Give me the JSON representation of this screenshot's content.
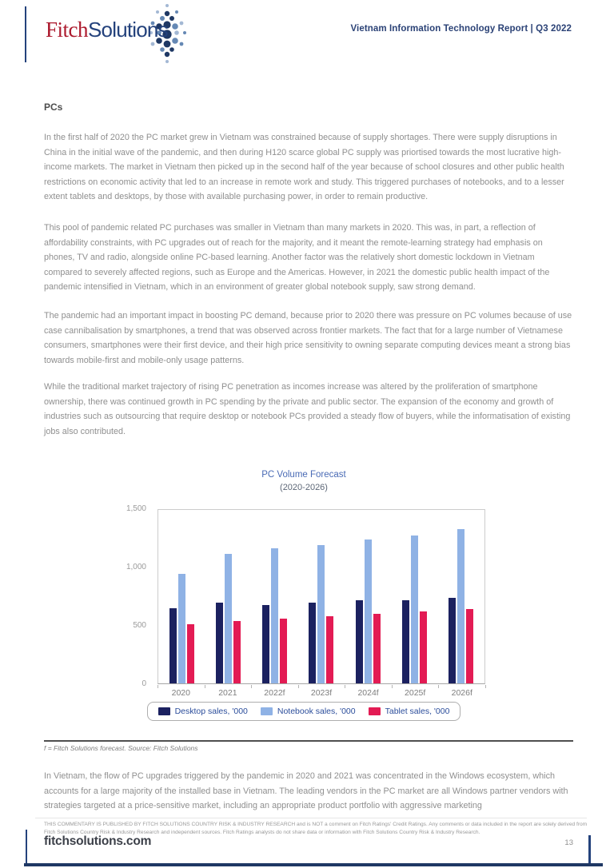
{
  "header": {
    "logo_fitch": "Fitch",
    "logo_solutions": "Solutions",
    "report_title": "Vietnam Information Technology Report | Q3 2022"
  },
  "article": {
    "heading": "PCs",
    "paragraphs": [
      "In the first half of 2020 the PC market grew in Vietnam was constrained because of supply shortages. There were supply disruptions in China in the initial wave of the pandemic, and then during H120 scarce global PC supply was priortised towards the most lucrative high-income markets. The market in Vietnam then picked up in the second half of the year because of school closures and other public health restrictions on economic activity that led to an increase in remote work and study. This triggered purchases of notebooks, and to a lesser extent tablets and desktops, by those with available purchasing power, in order to remain productive.",
      "This pool of pandemic related PC purchases was smaller in Vietnam than many markets in 2020. This was, in part, a reflection of affordability constraints, with PC upgrades out of reach for the majority, and it meant the remote-learning strategy had emphasis on phones, TV and radio, alongside online PC-based learning. Another factor was the relatively short domestic lockdown in Vietnam compared to severely affected regions, such as Europe and the Americas. However, in 2021 the domestic public health impact of the pandemic intensified in Vietnam, which in an environment of greater global notebook supply, saw strong demand.",
      "The pandemic had an important impact in boosting PC demand, because prior to 2020 there was pressure on PC volumes because of use case cannibalisation by smartphones, a trend that was observed across frontier markets. The fact that for a large number of Vietnamese consumers, smartphones were their first device, and their high price sensitivity to owning separate computing devices meant a strong bias towards mobile-first and mobile-only usage patterns.",
      "While the traditional market trajectory of rising PC penetration as incomes increase was altered by the proliferation of smartphone ownership, there was continued growth in PC spending by the private and public sector. The expansion of the economy and growth of industries such as outsourcing that require desktop or notebook PCs provided a steady flow of buyers, while the informatisation of existing jobs also contributed."
    ],
    "paragraph_after_chart": "In Vietnam, the flow of PC upgrades triggered by the pandemic in 2020 and 2021 was concentrated in the Windows ecosystem, which accounts for a large majority of the installed base in Vietnam. The leading vendors in the PC market are all Windows partner vendors with strategies targeted at a price-sensitive market, including an appropriate product portfolio with aggressive marketing"
  },
  "chart_data": {
    "type": "bar",
    "title": "PC Volume Forecast",
    "subtitle": "(2020-2026)",
    "categories": [
      "2020",
      "2021",
      "2022f",
      "2023f",
      "2024f",
      "2025f",
      "2026f"
    ],
    "series": [
      {
        "name": "Desktop sales, '000",
        "color": "#1b2160",
        "values": [
          645,
          690,
          670,
          690,
          710,
          715,
          730
        ]
      },
      {
        "name": "Notebook sales, '000",
        "color": "#8fb2e5",
        "values": [
          935,
          1110,
          1155,
          1185,
          1230,
          1270,
          1320
        ]
      },
      {
        "name": "Tablet sales, '000",
        "color": "#e31b54",
        "values": [
          505,
          535,
          555,
          575,
          595,
          615,
          640
        ]
      }
    ],
    "ylim": [
      0,
      1500
    ],
    "yticks": [
      {
        "value": 0,
        "label": "0"
      },
      {
        "value": 500,
        "label": "500"
      },
      {
        "value": 1000,
        "label": "1,000"
      },
      {
        "value": 1500,
        "label": "1,500"
      }
    ],
    "grid": false,
    "legend_position": "bottom"
  },
  "chart_footnote": "f = Fitch Solutions forecast. Source: Fitch Solutions",
  "footer": {
    "disclaimer": "THIS COMMENTARY IS PUBLISHED BY FITCH SOLUTIONS COUNTRY RISK & INDUSTRY RESEARCH and is NOT a comment on Fitch Ratings' Credit Ratings. Any comments or data included in the report are solely derived from Fitch Solutions Country Risk & Industry Research and independent sources. Fitch Ratings analysts do not share data or information with Fitch Solutions Country Risk & Industry Research.",
    "site": "fitchsolutions.com",
    "page_number": "13"
  }
}
